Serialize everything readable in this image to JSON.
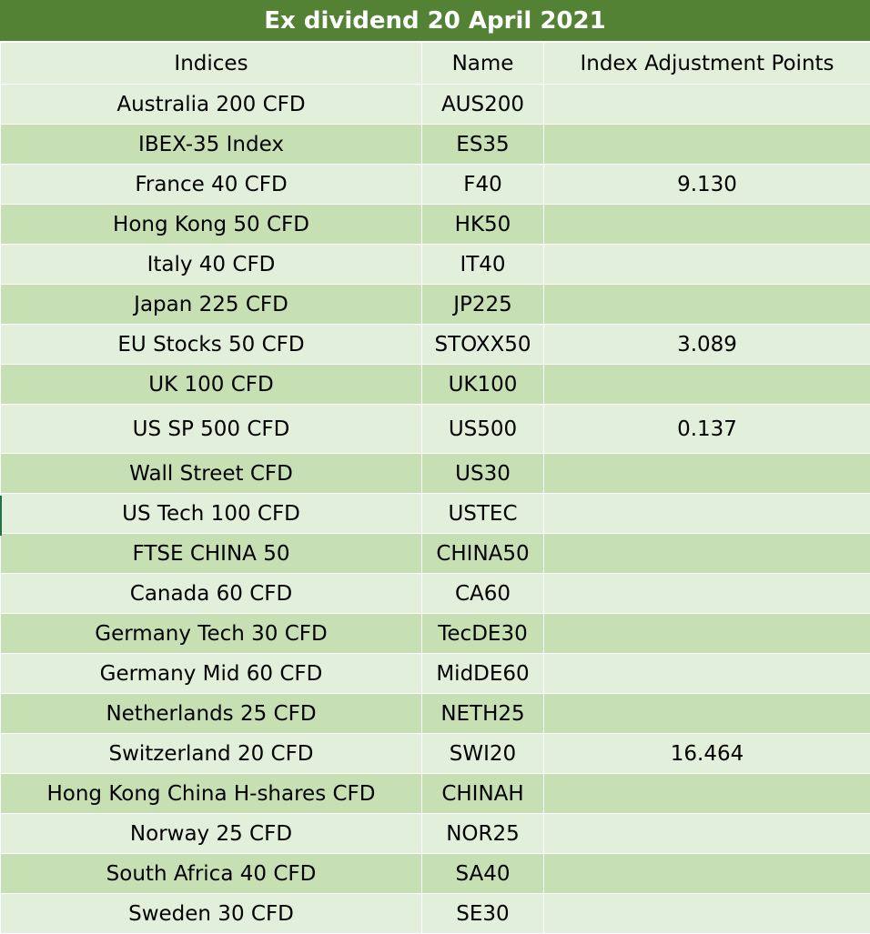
{
  "title": "Ex dividend 20 April 2021",
  "headers": {
    "indices": "Indices",
    "name": "Name",
    "points": "Index Adjustment Points"
  },
  "rows": [
    {
      "index": "Australia 200 CFD",
      "name": "AUS200",
      "points": ""
    },
    {
      "index": "IBEX-35 Index",
      "name": "ES35",
      "points": ""
    },
    {
      "index": "France 40 CFD",
      "name": "F40",
      "points": "9.130"
    },
    {
      "index": "Hong Kong 50 CFD",
      "name": "HK50",
      "points": ""
    },
    {
      "index": "Italy 40 CFD",
      "name": "IT40",
      "points": ""
    },
    {
      "index": "Japan 225 CFD",
      "name": "JP225",
      "points": ""
    },
    {
      "index": "EU Stocks 50 CFD",
      "name": "STOXX50",
      "points": "3.089"
    },
    {
      "index": "UK 100 CFD",
      "name": "UK100",
      "points": ""
    },
    {
      "index": "US SP 500 CFD",
      "name": "US500",
      "points": "0.137"
    },
    {
      "index": "Wall Street CFD",
      "name": "US30",
      "points": ""
    },
    {
      "index": "US Tech 100 CFD",
      "name": "USTEC",
      "points": ""
    },
    {
      "index": "FTSE CHINA 50",
      "name": "CHINA50",
      "points": ""
    },
    {
      "index": "Canada 60 CFD",
      "name": "CA60",
      "points": ""
    },
    {
      "index": "Germany Tech 30 CFD",
      "name": "TecDE30",
      "points": ""
    },
    {
      "index": "Germany Mid 60 CFD",
      "name": "MidDE60",
      "points": ""
    },
    {
      "index": "Netherlands 25 CFD",
      "name": "NETH25",
      "points": ""
    },
    {
      "index": "Switzerland 20 CFD",
      "name": "SWI20",
      "points": "16.464"
    },
    {
      "index": "Hong Kong China H-shares CFD",
      "name": "CHINAH",
      "points": ""
    },
    {
      "index": "Norway 25 CFD",
      "name": "NOR25",
      "points": ""
    },
    {
      "index": "South Africa 40 CFD",
      "name": "SA40",
      "points": ""
    },
    {
      "index": "Sweden 30 CFD",
      "name": "SE30",
      "points": ""
    }
  ],
  "colors": {
    "title_bg": "#548235",
    "row_light": "#e2efda",
    "row_dark": "#c6e0b4"
  }
}
